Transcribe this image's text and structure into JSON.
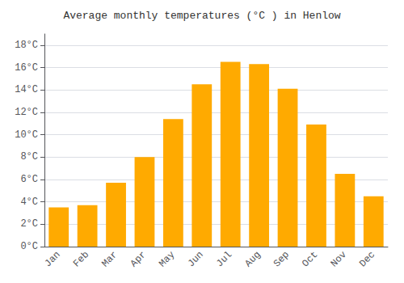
{
  "chart_data": {
    "type": "bar",
    "title": "Average monthly temperatures (°C ) in Henlow",
    "categories": [
      "Jan",
      "Feb",
      "Mar",
      "Apr",
      "May",
      "Jun",
      "Jul",
      "Aug",
      "Sep",
      "Oct",
      "Nov",
      "Dec"
    ],
    "values": [
      3.5,
      3.7,
      5.7,
      8.0,
      11.4,
      14.5,
      16.5,
      16.3,
      14.1,
      10.9,
      6.5,
      4.5
    ],
    "color": "#FFAA00",
    "ylim": [
      0,
      19
    ],
    "yticks": [
      {
        "value": 0,
        "label": "0°C"
      },
      {
        "value": 2,
        "label": "2°C"
      },
      {
        "value": 4,
        "label": "4°C"
      },
      {
        "value": 6,
        "label": "6°C"
      },
      {
        "value": 8,
        "label": "8°C"
      },
      {
        "value": 10,
        "label": "10°C"
      },
      {
        "value": 12,
        "label": "12°C"
      },
      {
        "value": 14,
        "label": "14°C"
      },
      {
        "value": 16,
        "label": "16°C"
      },
      {
        "value": 18,
        "label": "18°C"
      }
    ],
    "grid": true
  }
}
